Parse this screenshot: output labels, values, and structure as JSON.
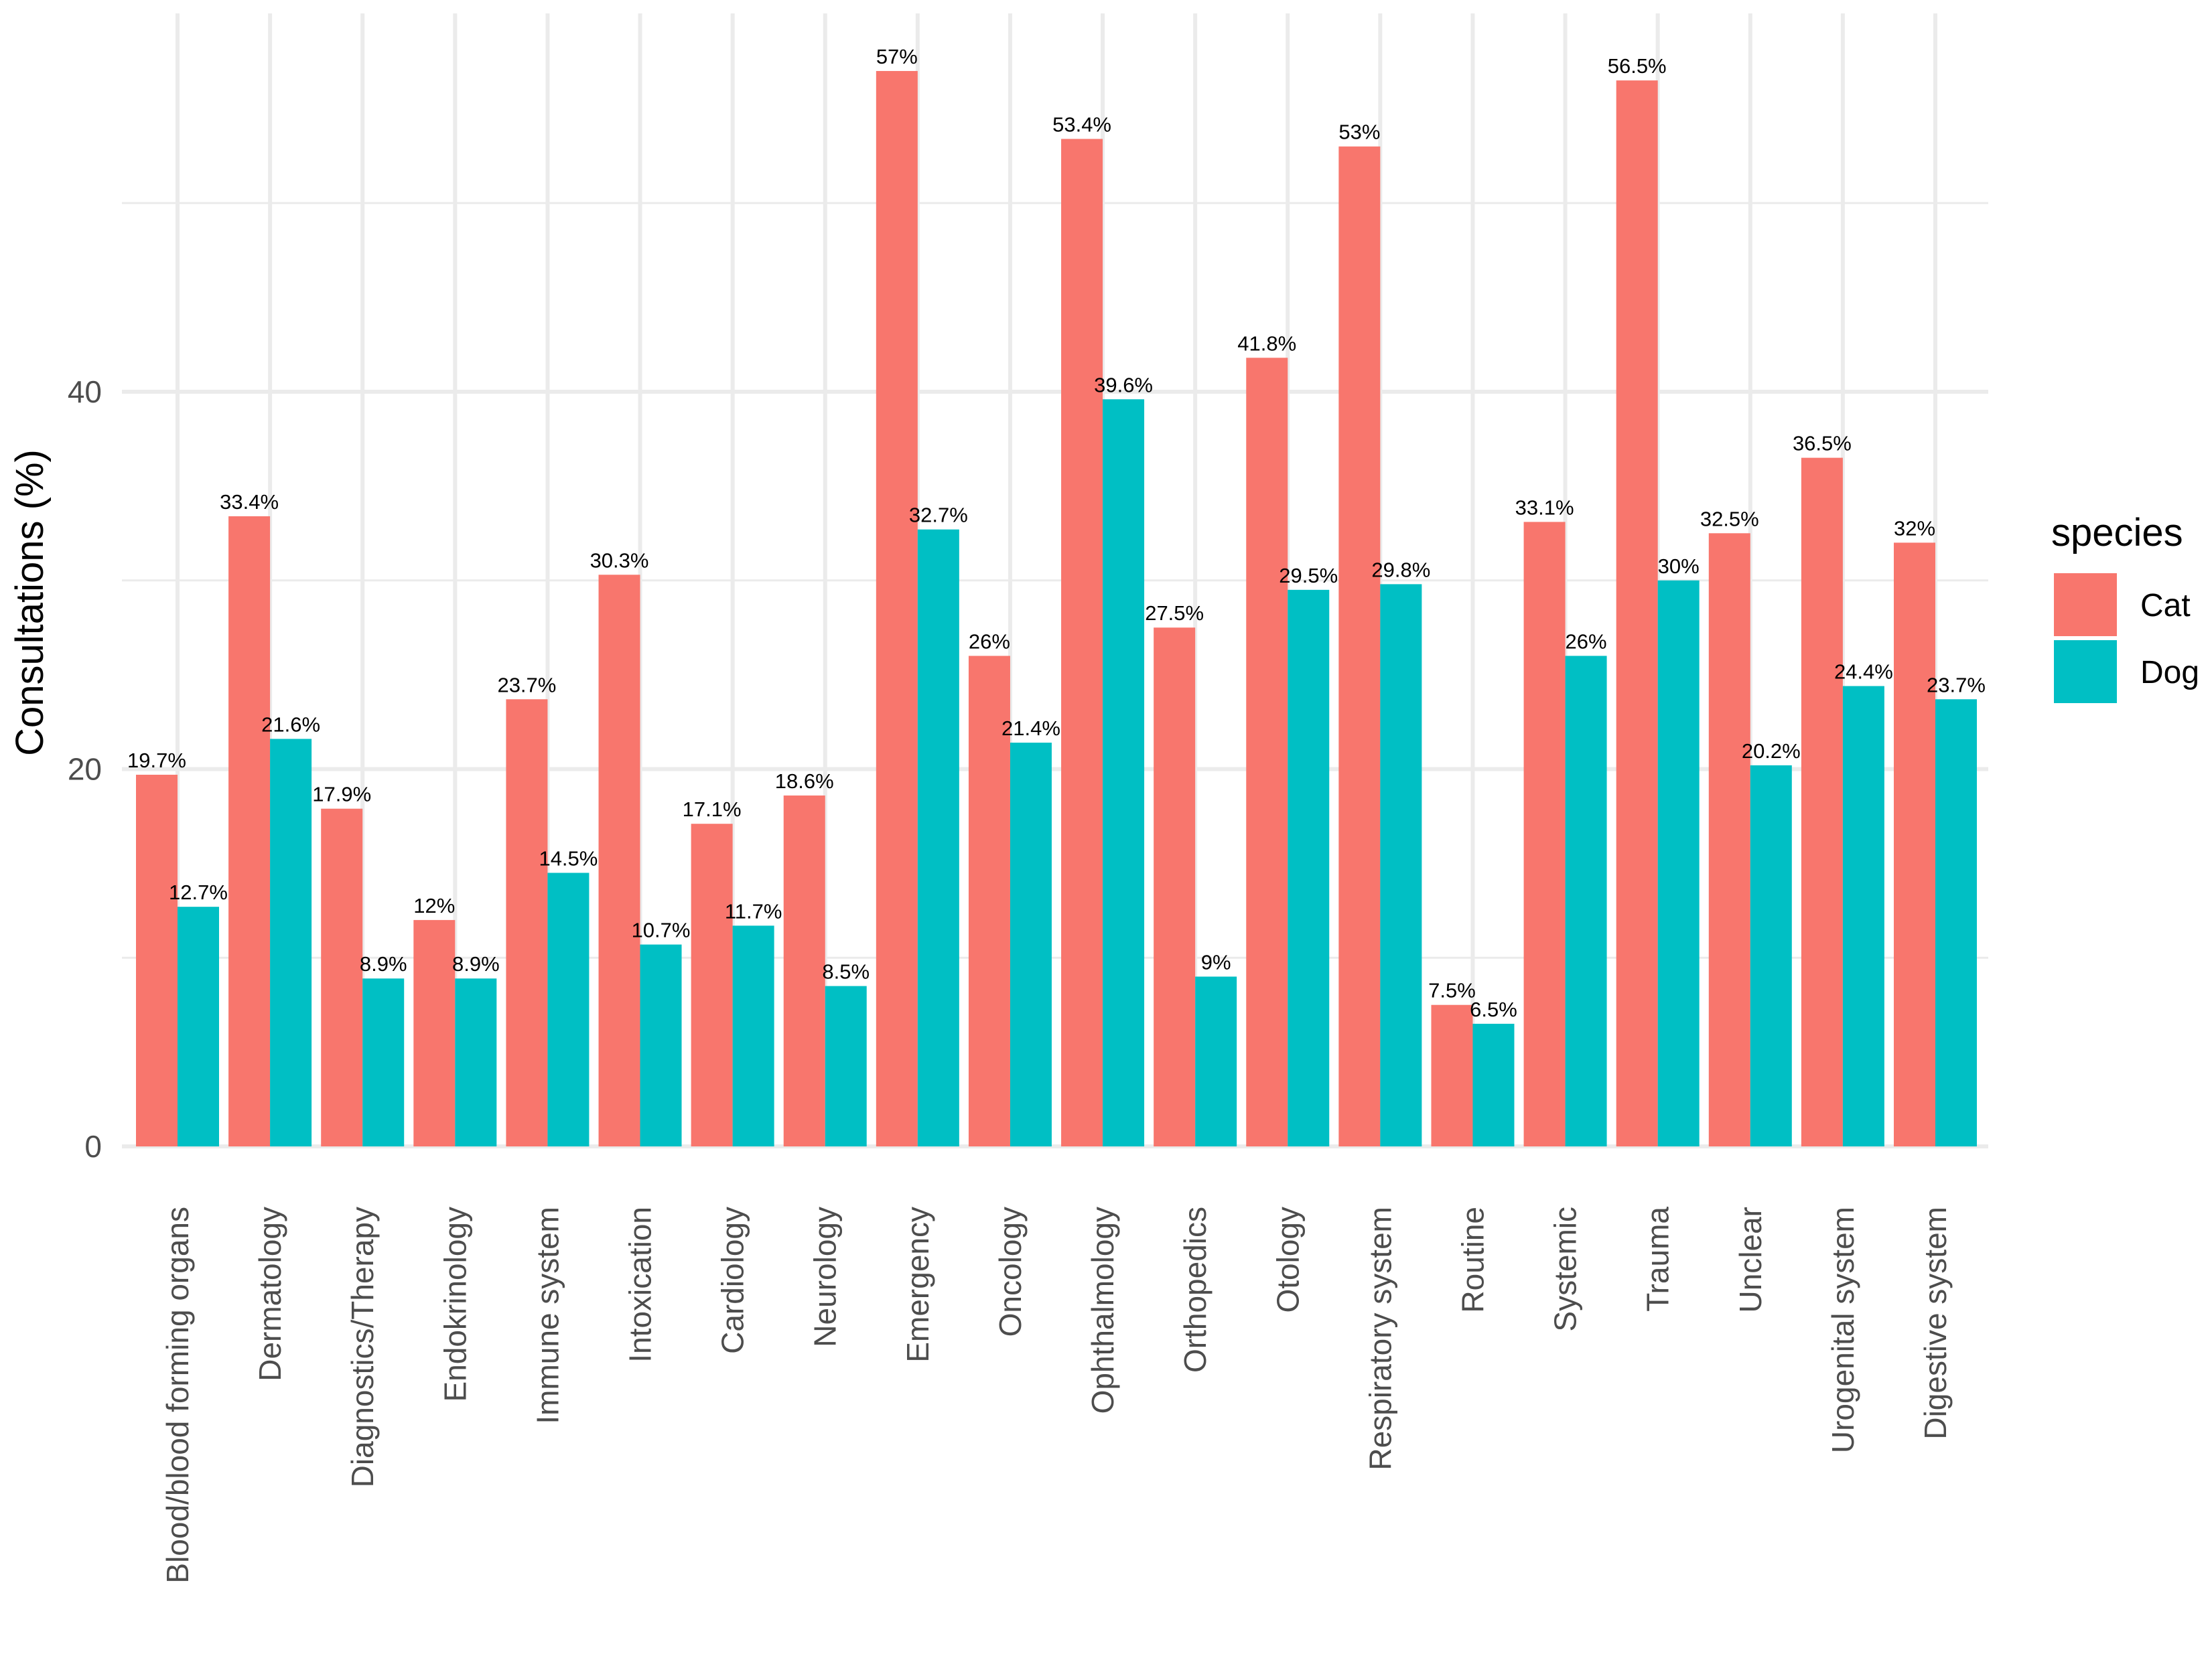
{
  "chart_data": {
    "type": "bar",
    "title": "",
    "xlabel": "",
    "ylabel": "Consultations (%)",
    "ylim": [
      0,
      60
    ],
    "yticks": [
      0,
      20,
      40
    ],
    "grid": true,
    "legend_position": "right",
    "legend_title": "species",
    "categories": [
      "Blood/blood forming organs",
      "Dermatology",
      "Diagnostics/Therapy",
      "Endokrinology",
      "Immune system",
      "Intoxication",
      "Cardiology",
      "Neurology",
      "Emergency",
      "Oncology",
      "Ophthalmology",
      "Orthopedics",
      "Otology",
      "Respiratory system",
      "Routine",
      "Systemic",
      "Trauma",
      "Unclear",
      "Urogenital system",
      "Digestive system"
    ],
    "series": [
      {
        "name": "Cat",
        "color": "#F8766D",
        "values": [
          19.7,
          33.4,
          17.9,
          12,
          23.7,
          30.3,
          17.1,
          18.6,
          57,
          26,
          53.4,
          27.5,
          41.8,
          53,
          7.5,
          33.1,
          56.5,
          32.5,
          36.5,
          32
        ],
        "labels": [
          "19.7%",
          "33.4%",
          "17.9%",
          "12%",
          "23.7%",
          "30.3%",
          "17.1%",
          "18.6%",
          "57%",
          "26%",
          "53.4%",
          "27.5%",
          "41.8%",
          "53%",
          "7.5%",
          "33.1%",
          "56.5%",
          "32.5%",
          "36.5%",
          "32%"
        ]
      },
      {
        "name": "Dog",
        "color": "#00BFC4",
        "values": [
          12.7,
          21.6,
          8.9,
          8.9,
          14.5,
          10.7,
          11.7,
          8.5,
          32.7,
          21.4,
          39.6,
          9,
          29.5,
          29.8,
          6.5,
          26,
          30,
          20.2,
          24.4,
          23.7
        ],
        "labels": [
          "12.7%",
          "21.6%",
          "8.9%",
          "8.9%",
          "14.5%",
          "10.7%",
          "11.7%",
          "8.5%",
          "32.7%",
          "21.4%",
          "39.6%",
          "9%",
          "29.5%",
          "29.8%",
          "6.5%",
          "26%",
          "30%",
          "20.2%",
          "24.4%",
          "23.7%"
        ]
      }
    ]
  }
}
